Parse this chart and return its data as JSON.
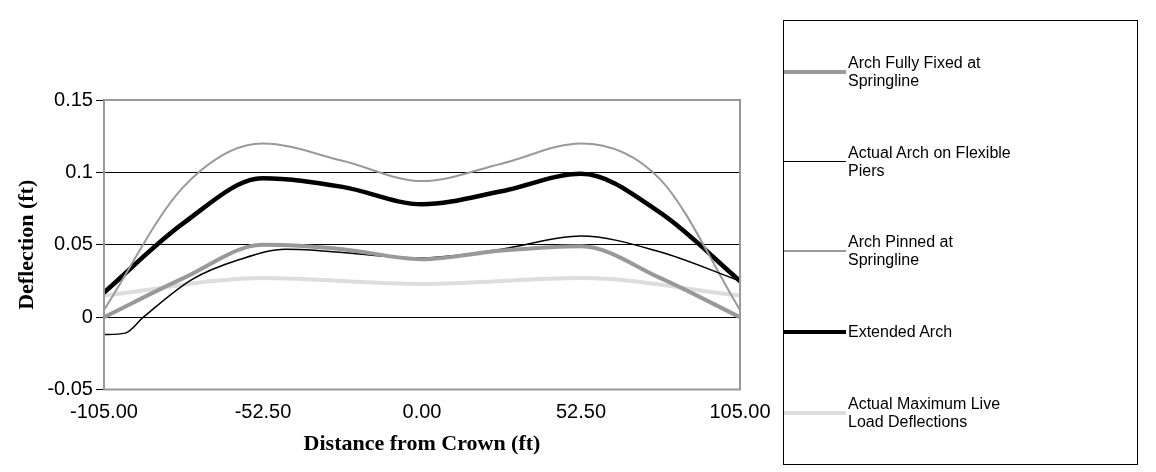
{
  "chart_data": {
    "type": "line",
    "xlabel": "Distance from Crown (ft)",
    "ylabel": "Deflection (ft)",
    "xlim": [
      -105,
      105
    ],
    "xticks": [
      {
        "value": -105,
        "label": "-105.00"
      },
      {
        "value": -52.5,
        "label": "-52.50"
      },
      {
        "value": 0,
        "label": "0.00"
      },
      {
        "value": 52.5,
        "label": "52.50"
      },
      {
        "value": 105,
        "label": "105.00"
      }
    ],
    "ylim": [
      -0.05,
      0.15
    ],
    "yticks": [
      -0.05,
      0,
      0.05,
      0.1,
      0.15
    ],
    "grid": "y",
    "legend": "right",
    "marker": "none",
    "line_style": "solid",
    "series": [
      {
        "name": "Arch Fully Fixed at Springline",
        "color": "#999999",
        "x": [
          -105,
          -78.75,
          -52.5,
          -26.25,
          0,
          26.25,
          52.5,
          78.75,
          105
        ],
        "values": [
          0,
          0.027,
          0.05,
          0.047,
          0.04,
          0.046,
          0.049,
          0.027,
          0
        ]
      },
      {
        "name": "Actual Arch on Flexible Piers",
        "color": "#000000",
        "x": [
          -105,
          -98,
          -92,
          -76,
          -60,
          -45,
          0,
          26.25,
          52.5,
          78.75,
          105
        ],
        "values": [
          -0.012,
          -0.011,
          0,
          0.026,
          0.04,
          0.047,
          0.041,
          0.047,
          0.056,
          0.045,
          0.025
        ]
      },
      {
        "name": "Arch Pinned at Springline",
        "color": "#999999",
        "x": [
          -105,
          -78.75,
          -52.5,
          -26.25,
          0,
          26.25,
          52.5,
          78.75,
          105
        ],
        "values": [
          0.005,
          0.09,
          0.12,
          0.108,
          0.094,
          0.106,
          0.12,
          0.095,
          0.005
        ]
      },
      {
        "name": "Extended Arch",
        "color": "#000000",
        "x": [
          -105,
          -78.75,
          -52.5,
          -26.25,
          0,
          26.25,
          52.5,
          78.75,
          105
        ],
        "values": [
          0.017,
          0.065,
          0.096,
          0.09,
          0.078,
          0.087,
          0.099,
          0.072,
          0.025
        ]
      },
      {
        "name": "Actual Maximum Live Load Deflections",
        "color": "#dddddd",
        "x": [
          -105,
          -52.5,
          0,
          52.5,
          105
        ],
        "values": [
          0.015,
          0.027,
          0.023,
          0.027,
          0.015
        ]
      }
    ]
  }
}
